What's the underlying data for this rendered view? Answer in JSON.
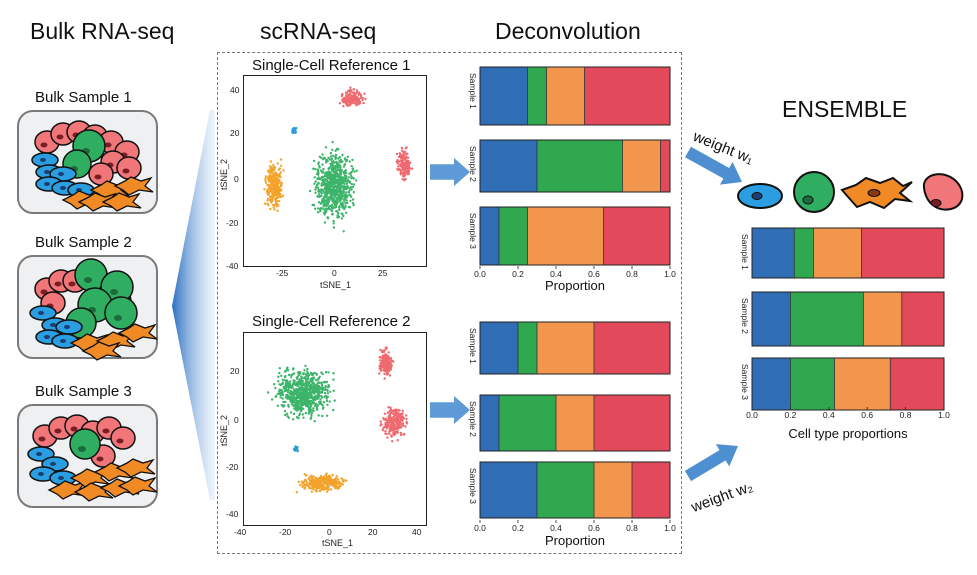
{
  "headers": {
    "bulk": "Bulk RNA-seq",
    "scrna": "scRNA-seq",
    "deconv": "Deconvolution",
    "ensemble": "ENSEMBLE"
  },
  "bulk_samples": [
    "Bulk Sample 1",
    "Bulk Sample 2",
    "Bulk Sample 3"
  ],
  "references": [
    {
      "title": "Single-Cell Reference 1",
      "xlabel": "tSNE_1",
      "ylabel": "tSNE_2",
      "xticks": [
        "-25",
        "0",
        "25"
      ],
      "yticks": [
        "40",
        "20",
        "0",
        "-20",
        "-40"
      ]
    },
    {
      "title": "Single-Cell Reference 2",
      "xlabel": "tSNE_1",
      "ylabel": "tSNE_2",
      "xticks": [
        "-40",
        "-20",
        "0",
        "20",
        "40"
      ],
      "yticks": [
        "20",
        "0",
        "-20",
        "-40"
      ]
    }
  ],
  "colors": {
    "blue": "#2f6db5",
    "green": "#2fa84f",
    "orange": "#f2964e",
    "red": "#e2495a",
    "tsne_red": "#ef6a6f",
    "tsne_green": "#3cb46a",
    "tsne_orange": "#f3a22a",
    "tsne_cyan": "#2a9fd6",
    "arrow": "#4d8fd0"
  },
  "weights": [
    "weight w₁",
    "weight w₂"
  ],
  "chart_data": [
    {
      "type": "bar",
      "orientation": "horizontal-stacked",
      "categories": [
        "Sample 1",
        "Sample 2",
        "Sample 3"
      ],
      "series": [
        {
          "color": "#2f6db5",
          "values": [
            0.25,
            0.3,
            0.1
          ]
        },
        {
          "color": "#2fa84f",
          "values": [
            0.1,
            0.45,
            0.15
          ]
        },
        {
          "color": "#f2964e",
          "values": [
            0.2,
            0.2,
            0.4
          ]
        },
        {
          "color": "#e2495a",
          "values": [
            0.45,
            0.05,
            0.35
          ]
        }
      ],
      "xlabel": "Proportion",
      "xticks": [
        "0.0",
        "0.2",
        "0.4",
        "0.6",
        "0.8",
        "1.0"
      ],
      "xlim": [
        0,
        1
      ]
    },
    {
      "type": "bar",
      "orientation": "horizontal-stacked",
      "categories": [
        "Sample 1",
        "Sample 2",
        "Sample 3"
      ],
      "series": [
        {
          "color": "#2f6db5",
          "values": [
            0.2,
            0.1,
            0.3
          ]
        },
        {
          "color": "#2fa84f",
          "values": [
            0.1,
            0.3,
            0.3
          ]
        },
        {
          "color": "#f2964e",
          "values": [
            0.3,
            0.2,
            0.2
          ]
        },
        {
          "color": "#e2495a",
          "values": [
            0.4,
            0.4,
            0.2
          ]
        }
      ],
      "xlabel": "Proportion",
      "xticks": [
        "0.0",
        "0.2",
        "0.4",
        "0.6",
        "0.8",
        "1.0"
      ],
      "xlim": [
        0,
        1
      ]
    },
    {
      "type": "bar",
      "orientation": "horizontal-stacked",
      "categories": [
        "Sample 1",
        "Sample 2",
        "Sample 3"
      ],
      "series": [
        {
          "color": "#2f6db5",
          "values": [
            0.22,
            0.2,
            0.2
          ]
        },
        {
          "color": "#2fa84f",
          "values": [
            0.1,
            0.38,
            0.23
          ]
        },
        {
          "color": "#f2964e",
          "values": [
            0.25,
            0.2,
            0.29
          ]
        },
        {
          "color": "#e2495a",
          "values": [
            0.43,
            0.22,
            0.28
          ]
        }
      ],
      "xlabel": "Cell type proportions",
      "xticks": [
        "0.0",
        "0.2",
        "0.4",
        "0.6",
        "0.8",
        "1.0"
      ],
      "xlim": [
        0,
        1
      ]
    }
  ]
}
